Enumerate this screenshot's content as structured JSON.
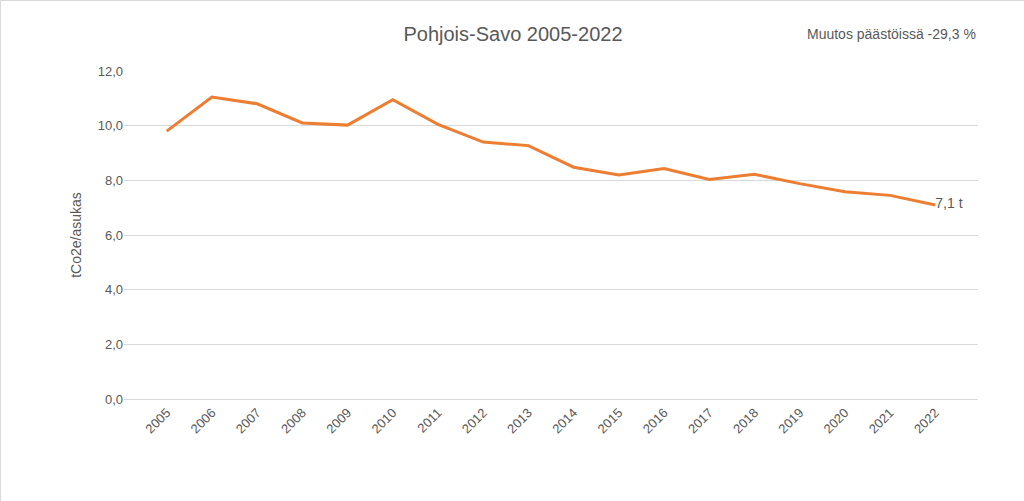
{
  "chart_data": {
    "type": "line",
    "title": "Pohjois-Savo 2005-2022",
    "annotations": [
      "Muutos päästöissä -29,3 %"
    ],
    "y_label": "tCo2e/asukas",
    "categories": [
      "2005",
      "2006",
      "2007",
      "2008",
      "2009",
      "2010",
      "2011",
      "2012",
      "2013",
      "2014",
      "2015",
      "2016",
      "2017",
      "2018",
      "2019",
      "2020",
      "2021",
      "2022"
    ],
    "values": [
      9.8,
      11.05,
      10.8,
      10.1,
      10.02,
      10.95,
      10.05,
      9.4,
      9.27,
      8.48,
      8.2,
      8.43,
      8.03,
      8.22,
      7.88,
      7.58,
      7.45,
      7.1
    ],
    "value_labels": [
      null,
      null,
      null,
      null,
      null,
      null,
      null,
      null,
      null,
      null,
      null,
      null,
      null,
      null,
      null,
      null,
      null,
      "7,1 t"
    ],
    "color": "#ed7d31",
    "ylim": [
      0,
      12
    ],
    "yticks": [
      {
        "value": 0,
        "label": "0,0"
      },
      {
        "value": 2,
        "label": "2,0"
      },
      {
        "value": 4,
        "label": "4,0"
      },
      {
        "value": 6,
        "label": "6,0"
      },
      {
        "value": 8,
        "label": "8,0"
      },
      {
        "value": 10,
        "label": "10,0"
      },
      {
        "value": 12,
        "label": "12,0"
      }
    ],
    "grid": true
  }
}
